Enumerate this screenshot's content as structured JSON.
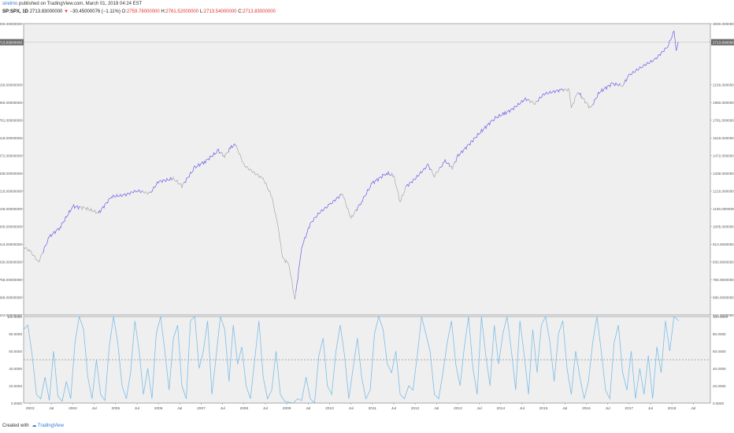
{
  "header": {
    "author": "sirelmo",
    "published_text": "published on TradingView.com, March 01, 2018 04:24 EST",
    "symbol": "SP:SPX, 1D",
    "last": "2713.83000000",
    "change": "−30.45000076 (−1.11%)",
    "open_label": "O:",
    "open": "2759.78000000",
    "high_label": "H:",
    "high": "2761.52000000",
    "low_label": "L:",
    "low": "2713.54000000",
    "close_label": "C:",
    "close": "2713.83000000"
  },
  "footer": {
    "created_with": "Created with",
    "brand": "TradingView"
  },
  "colors": {
    "plot_bg": "#efefef",
    "up_line": "#6a5ee8",
    "down_line": "#a8a8a8",
    "osc_line": "#7cbde8",
    "midline": "#556070",
    "price_tag_bg": "#6b6b6b"
  },
  "chart_data": [
    {
      "type": "line",
      "title": "SP:SPX, 1D",
      "y_scale": "log",
      "ylim": [
        624,
        3000
      ],
      "current_value": 2713.83,
      "current_value_label": "2713.83000000",
      "y_ticks": [
        624,
        686,
        755,
        830,
        913,
        1005,
        1106,
        1216,
        1338,
        1472,
        1619,
        1781,
        1960,
        2156,
        2716,
        3000
      ],
      "y_tick_labels": [
        "624.00000000",
        "686.00000000",
        "755.00000000",
        "830.00000000",
        "913.00000000",
        "1005.00000000",
        "1106.00000000",
        "1216.00000000",
        "1338.00000000",
        "1472.00000000",
        "1619.00000000",
        "1781.00000000",
        "1960.00000000",
        "2156.00000000",
        "2716.00000000",
        "3000.00000000"
      ],
      "x_ticks": [
        "2003",
        "Jul",
        "2004",
        "Jul",
        "2005",
        "Jul",
        "2006",
        "Jul",
        "2007",
        "Jul",
        "2008",
        "Jul",
        "2009",
        "Jul",
        "2010",
        "Jul",
        "2011",
        "Jul",
        "2012",
        "Jul",
        "2013",
        "Jul",
        "2014",
        "Jul",
        "2015",
        "Jul",
        "2016",
        "Jul",
        "2017",
        "Jul",
        "2018",
        "Jul"
      ],
      "series": [
        {
          "x": [
            2002.85,
            2003.0,
            2003.2,
            2003.45,
            2003.7,
            2004.0,
            2004.3,
            2004.6,
            2004.9,
            2005.2,
            2005.5,
            2005.8,
            2006.0,
            2006.35,
            2006.55,
            2006.85,
            2007.1,
            2007.4,
            2007.55,
            2007.7,
            2007.8,
            2008.0,
            2008.2,
            2008.45,
            2008.65,
            2008.8,
            2008.9,
            2009.05,
            2009.19,
            2009.35,
            2009.55,
            2009.75,
            2010.0,
            2010.3,
            2010.5,
            2010.75,
            2011.0,
            2011.33,
            2011.5,
            2011.65,
            2011.8,
            2012.0,
            2012.3,
            2012.45,
            2012.7,
            2012.87,
            2013.0,
            2013.35,
            2013.55,
            2013.85,
            2014.1,
            2014.3,
            2014.58,
            2014.8,
            2015.0,
            2015.4,
            2015.6,
            2015.65,
            2015.8,
            2016.1,
            2016.3,
            2016.6,
            2016.85,
            2017.0,
            2017.3,
            2017.6,
            2017.9,
            2018.05,
            2018.1,
            2018.16
          ],
          "values": [
            900,
            880,
            830,
            950,
            1000,
            1120,
            1110,
            1080,
            1180,
            1190,
            1220,
            1200,
            1280,
            1300,
            1250,
            1380,
            1430,
            1510,
            1470,
            1540,
            1565,
            1400,
            1350,
            1300,
            1180,
            1000,
            850,
            820,
            676,
            900,
            1020,
            1080,
            1130,
            1200,
            1050,
            1150,
            1270,
            1340,
            1320,
            1150,
            1250,
            1300,
            1400,
            1320,
            1430,
            1380,
            1470,
            1600,
            1680,
            1800,
            1850,
            1900,
            2000,
            1950,
            2050,
            2100,
            2100,
            1900,
            2080,
            1900,
            2070,
            2170,
            2150,
            2270,
            2380,
            2470,
            2650,
            2872,
            2600,
            2713.83
          ]
        }
      ]
    },
    {
      "type": "line",
      "ylim": [
        0,
        100
      ],
      "midline": 50,
      "y_ticks": [
        0,
        20,
        40,
        60,
        80,
        100
      ],
      "y_tick_labels": [
        "0.0000",
        "20.0000",
        "40.0000",
        "60.0000",
        "80.0000",
        "100.0000"
      ],
      "series": [
        {
          "x": [
            2002.85,
            2002.95,
            2003.05,
            2003.15,
            2003.25,
            2003.35,
            2003.45,
            2003.55,
            2003.65,
            2003.75,
            2003.85,
            2003.95,
            2004.05,
            2004.15,
            2004.25,
            2004.35,
            2004.45,
            2004.55,
            2004.65,
            2004.75,
            2004.85,
            2004.95,
            2005.05,
            2005.15,
            2005.25,
            2005.35,
            2005.45,
            2005.55,
            2005.65,
            2005.75,
            2005.85,
            2005.95,
            2006.05,
            2006.15,
            2006.25,
            2006.35,
            2006.45,
            2006.55,
            2006.65,
            2006.75,
            2006.85,
            2006.95,
            2007.05,
            2007.15,
            2007.25,
            2007.35,
            2007.45,
            2007.55,
            2007.65,
            2007.75,
            2007.85,
            2007.95,
            2008.05,
            2008.15,
            2008.25,
            2008.35,
            2008.45,
            2008.55,
            2008.65,
            2008.75,
            2008.85,
            2008.95,
            2009.05,
            2009.15,
            2009.25,
            2009.35,
            2009.45,
            2009.55,
            2009.65,
            2009.75,
            2009.85,
            2009.95,
            2010.05,
            2010.15,
            2010.25,
            2010.35,
            2010.45,
            2010.55,
            2010.65,
            2010.75,
            2010.85,
            2010.95,
            2011.05,
            2011.15,
            2011.25,
            2011.35,
            2011.45,
            2011.55,
            2011.65,
            2011.75,
            2011.85,
            2011.95,
            2012.05,
            2012.15,
            2012.25,
            2012.35,
            2012.45,
            2012.55,
            2012.65,
            2012.75,
            2012.85,
            2012.95,
            2013.05,
            2013.15,
            2013.25,
            2013.35,
            2013.45,
            2013.55,
            2013.65,
            2013.75,
            2013.85,
            2013.95,
            2014.05,
            2014.15,
            2014.25,
            2014.35,
            2014.45,
            2014.55,
            2014.65,
            2014.75,
            2014.85,
            2014.95,
            2015.05,
            2015.15,
            2015.25,
            2015.35,
            2015.45,
            2015.55,
            2015.65,
            2015.75,
            2015.85,
            2015.95,
            2016.05,
            2016.15,
            2016.25,
            2016.35,
            2016.45,
            2016.55,
            2016.65,
            2016.75,
            2016.85,
            2016.95,
            2017.05,
            2017.15,
            2017.25,
            2017.35,
            2017.45,
            2017.55,
            2017.65,
            2017.75,
            2017.85,
            2017.95,
            2018.05,
            2018.16
          ],
          "values": [
            85,
            90,
            55,
            10,
            5,
            30,
            3,
            60,
            8,
            2,
            25,
            5,
            70,
            100,
            85,
            30,
            5,
            50,
            10,
            3,
            65,
            100,
            70,
            20,
            5,
            35,
            95,
            60,
            10,
            40,
            5,
            80,
            100,
            60,
            15,
            75,
            90,
            20,
            5,
            95,
            100,
            40,
            60,
            95,
            10,
            55,
            100,
            85,
            25,
            90,
            45,
            65,
            20,
            5,
            50,
            95,
            30,
            5,
            15,
            60,
            10,
            2,
            1,
            0,
            5,
            3,
            30,
            5,
            0,
            55,
            75,
            20,
            10,
            60,
            90,
            55,
            5,
            40,
            75,
            30,
            5,
            15,
            80,
            100,
            85,
            45,
            35,
            60,
            10,
            5,
            20,
            15,
            55,
            100,
            80,
            60,
            10,
            5,
            35,
            70,
            95,
            45,
            20,
            65,
            100,
            40,
            10,
            100,
            55,
            20,
            90,
            45,
            80,
            100,
            60,
            15,
            95,
            55,
            10,
            85,
            35,
            90,
            100,
            70,
            25,
            80,
            95,
            40,
            10,
            60,
            30,
            5,
            25,
            70,
            100,
            60,
            15,
            5,
            70,
            90,
            35,
            15,
            60,
            5,
            40,
            10,
            55,
            5,
            65,
            35,
            95,
            60,
            100,
            95
          ]
        }
      ]
    }
  ]
}
